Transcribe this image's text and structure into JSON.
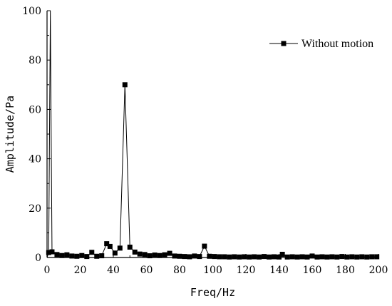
{
  "chart_data": {
    "type": "line",
    "xlabel": "Freq/Hz",
    "ylabel": "Amplitude/Pa",
    "xlim": [
      0,
      200
    ],
    "ylim": [
      0,
      100
    ],
    "x_ticks": [
      0,
      20,
      40,
      60,
      80,
      100,
      120,
      140,
      160,
      180,
      200
    ],
    "y_ticks": [
      0,
      20,
      40,
      60,
      80,
      100
    ],
    "grid": false,
    "legend_position": "top-right",
    "marker": "square",
    "series": [
      {
        "name": "Without motion",
        "color": "#000000",
        "x": [
          0,
          1,
          2,
          2.5,
          3,
          6,
          9,
          12,
          15,
          18,
          21,
          24,
          27,
          30,
          33,
          36,
          38,
          41,
          44,
          47,
          50,
          53,
          56,
          59,
          62,
          65,
          68,
          71,
          74,
          77,
          80,
          83,
          86,
          89,
          92,
          95,
          98,
          101,
          104,
          107,
          110,
          113,
          116,
          119,
          122,
          125,
          128,
          131,
          134,
          137,
          140,
          142,
          145,
          148,
          151,
          154,
          157,
          160,
          163,
          166,
          169,
          172,
          175,
          178,
          181,
          184,
          187,
          190,
          193,
          196,
          199
        ],
        "y": [
          0,
          2,
          100,
          50,
          2.3,
          1.2,
          0.8,
          1.1,
          0.6,
          0.5,
          0.8,
          0.4,
          2.1,
          0.5,
          0.7,
          5.6,
          4.5,
          1.8,
          3.8,
          70,
          4.2,
          2.2,
          1.4,
          1.2,
          0.7,
          1.0,
          0.8,
          1.1,
          1.7,
          0.6,
          0.5,
          0.4,
          0.3,
          0.6,
          0.4,
          4.6,
          0.5,
          0.4,
          0.3,
          0.3,
          0.2,
          0.3,
          0.2,
          0.3,
          0.2,
          0.3,
          0.2,
          0.4,
          0.2,
          0.3,
          0.2,
          1.3,
          0.2,
          0.3,
          0.2,
          0.3,
          0.2,
          0.6,
          0.2,
          0.3,
          0.2,
          0.3,
          0.2,
          0.4,
          0.2,
          0.3,
          0.2,
          0.3,
          0.2,
          0.3,
          0.3
        ]
      }
    ]
  }
}
